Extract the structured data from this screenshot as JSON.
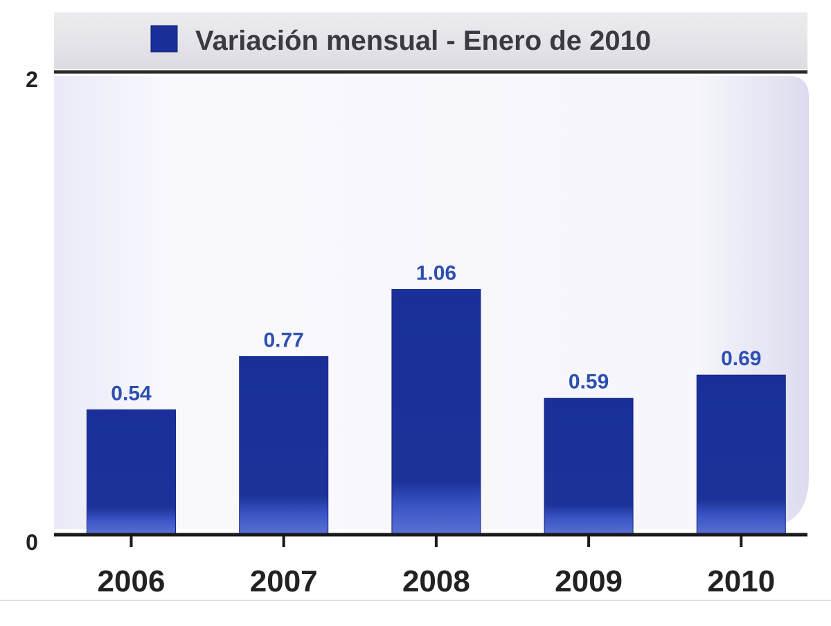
{
  "chart_data": {
    "type": "bar",
    "categories": [
      "2006",
      "2007",
      "2008",
      "2009",
      "2010"
    ],
    "series": [
      {
        "name": "Variación mensual - Enero de 2010",
        "values": [
          0.54,
          0.77,
          1.06,
          0.59,
          0.69
        ]
      }
    ],
    "value_labels": [
      "0.54",
      "0.77",
      "1.06",
      "0.59",
      "0.69"
    ],
    "yticks": [
      0,
      2
    ],
    "ylim": [
      0,
      2
    ],
    "grid": false,
    "legend_position": "top",
    "colors": {
      "bar": "#1a2f9a",
      "bar_light": "#3f57c8",
      "value_label": "#2e4fb0",
      "legend_bg": "#e6e6ea",
      "plot_bg": "#f2f2fb",
      "axis": "#1a1a1a",
      "text": "#222222"
    }
  }
}
